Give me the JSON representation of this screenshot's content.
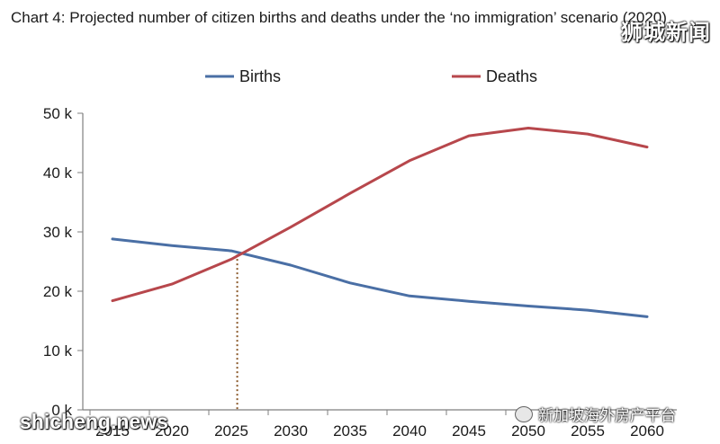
{
  "title": "Chart 4: Projected number of citizen births and deaths under the ‘no immigration’ scenario (2020)",
  "watermarks": {
    "top": "狮城新闻",
    "bottom_left": "shicheng.news",
    "bottom_right": "新加坡海外房产平台"
  },
  "colors": {
    "births": "#4a6fa5",
    "deaths": "#b7474c",
    "axis": "#7f7f7f",
    "guide": "#8b5a2b"
  },
  "chart_data": {
    "type": "line",
    "title": "Chart 4: Projected number of citizen births and deaths under the ‘no immigration’ scenario (2020)",
    "xlabel": "",
    "ylabel": "",
    "x": [
      2015,
      2020,
      2025,
      2030,
      2035,
      2040,
      2045,
      2050,
      2055,
      2060
    ],
    "x_tick_labels": [
      "2015",
      "2020",
      "2025",
      "2030",
      "2035",
      "2040",
      "2045",
      "2050",
      "2055",
      "2060"
    ],
    "y_tick_labels": [
      "0 k",
      "10 k",
      "20 k",
      "30 k",
      "40 k",
      "50 k"
    ],
    "ylim": [
      0,
      50000
    ],
    "series": [
      {
        "name": "Births",
        "values": [
          28800,
          27700,
          26800,
          24400,
          21400,
          19200,
          18300,
          17500,
          16800,
          15700
        ]
      },
      {
        "name": "Deaths",
        "values": [
          18400,
          21200,
          25400,
          30800,
          36500,
          42000,
          46200,
          47500,
          46500,
          44300
        ]
      }
    ],
    "annotation": {
      "type": "vertical-dotted-line",
      "x": 2025.5,
      "from_y": 0,
      "to_y": 26200
    },
    "legend": "top",
    "grid": false
  }
}
